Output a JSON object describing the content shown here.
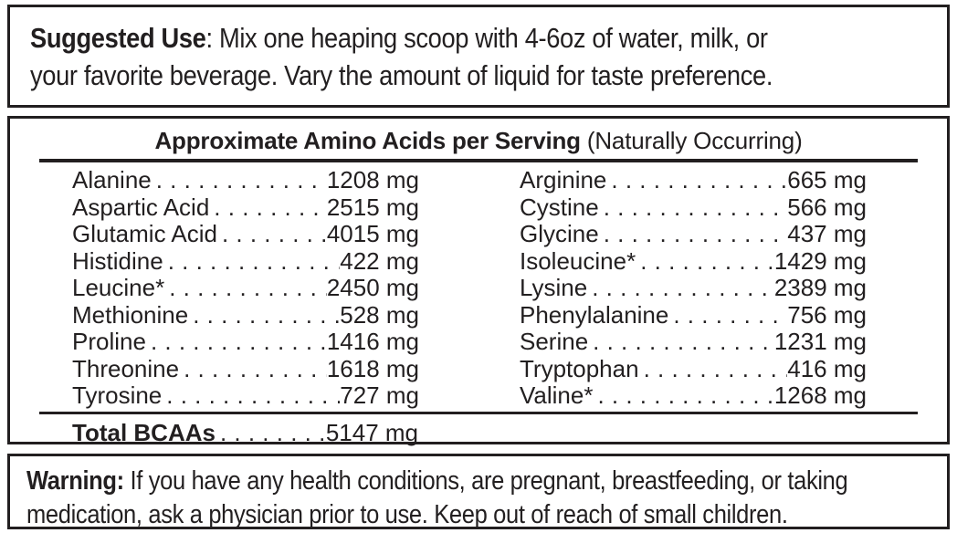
{
  "colors": {
    "ink": "#221f20",
    "background": "#ffffff"
  },
  "suggested_use": {
    "heading": "Suggested Use",
    "line1_rest": ": Mix one heaping scoop with 4-6oz of water, milk, or",
    "line2": "your favorite beverage. Vary the amount of liquid for taste preference."
  },
  "amino_table": {
    "title_bold": "Approximate Amino Acids per Serving",
    "title_normal": " (Naturally Occurring)",
    "leader": ". . . . . . . . . . . . . . . . . . . . . . . . . . . . . . . . . . . . . . . . ",
    "left_rows": [
      {
        "name": "Alanine",
        "amount": "1208 mg"
      },
      {
        "name": "Aspartic Acid",
        "amount": "2515 mg"
      },
      {
        "name": "Glutamic Acid",
        "amount": "4015 mg"
      },
      {
        "name": "Histidine",
        "amount": "422 mg"
      },
      {
        "name": "Leucine*",
        "amount": "2450 mg"
      },
      {
        "name": "Methionine",
        "amount": "528 mg"
      },
      {
        "name": "Proline",
        "amount": "1416 mg"
      },
      {
        "name": "Threonine",
        "amount": "1618 mg"
      },
      {
        "name": "Tyrosine",
        "amount": "727 mg"
      }
    ],
    "right_rows": [
      {
        "name": "Arginine",
        "amount": "665 mg"
      },
      {
        "name": "Cystine",
        "amount": "566 mg"
      },
      {
        "name": "Glycine",
        "amount": "437 mg"
      },
      {
        "name": "Isoleucine*",
        "amount": "1429 mg"
      },
      {
        "name": "Lysine",
        "amount": "2389 mg"
      },
      {
        "name": "Phenylalanine",
        "amount": "756 mg"
      },
      {
        "name": "Serine",
        "amount": "1231 mg"
      },
      {
        "name": "Tryptophan",
        "amount": "416 mg"
      },
      {
        "name": "Valine*",
        "amount": "1268 mg"
      }
    ],
    "total": {
      "label": "Total BCAAs",
      "amount": "5147 mg"
    }
  },
  "warning": {
    "heading": "Warning:",
    "line1_rest": " If you have any health conditions, are pregnant, breastfeeding, or taking",
    "line2": "medication, ask a physician prior to use. Keep out of reach of small children."
  }
}
